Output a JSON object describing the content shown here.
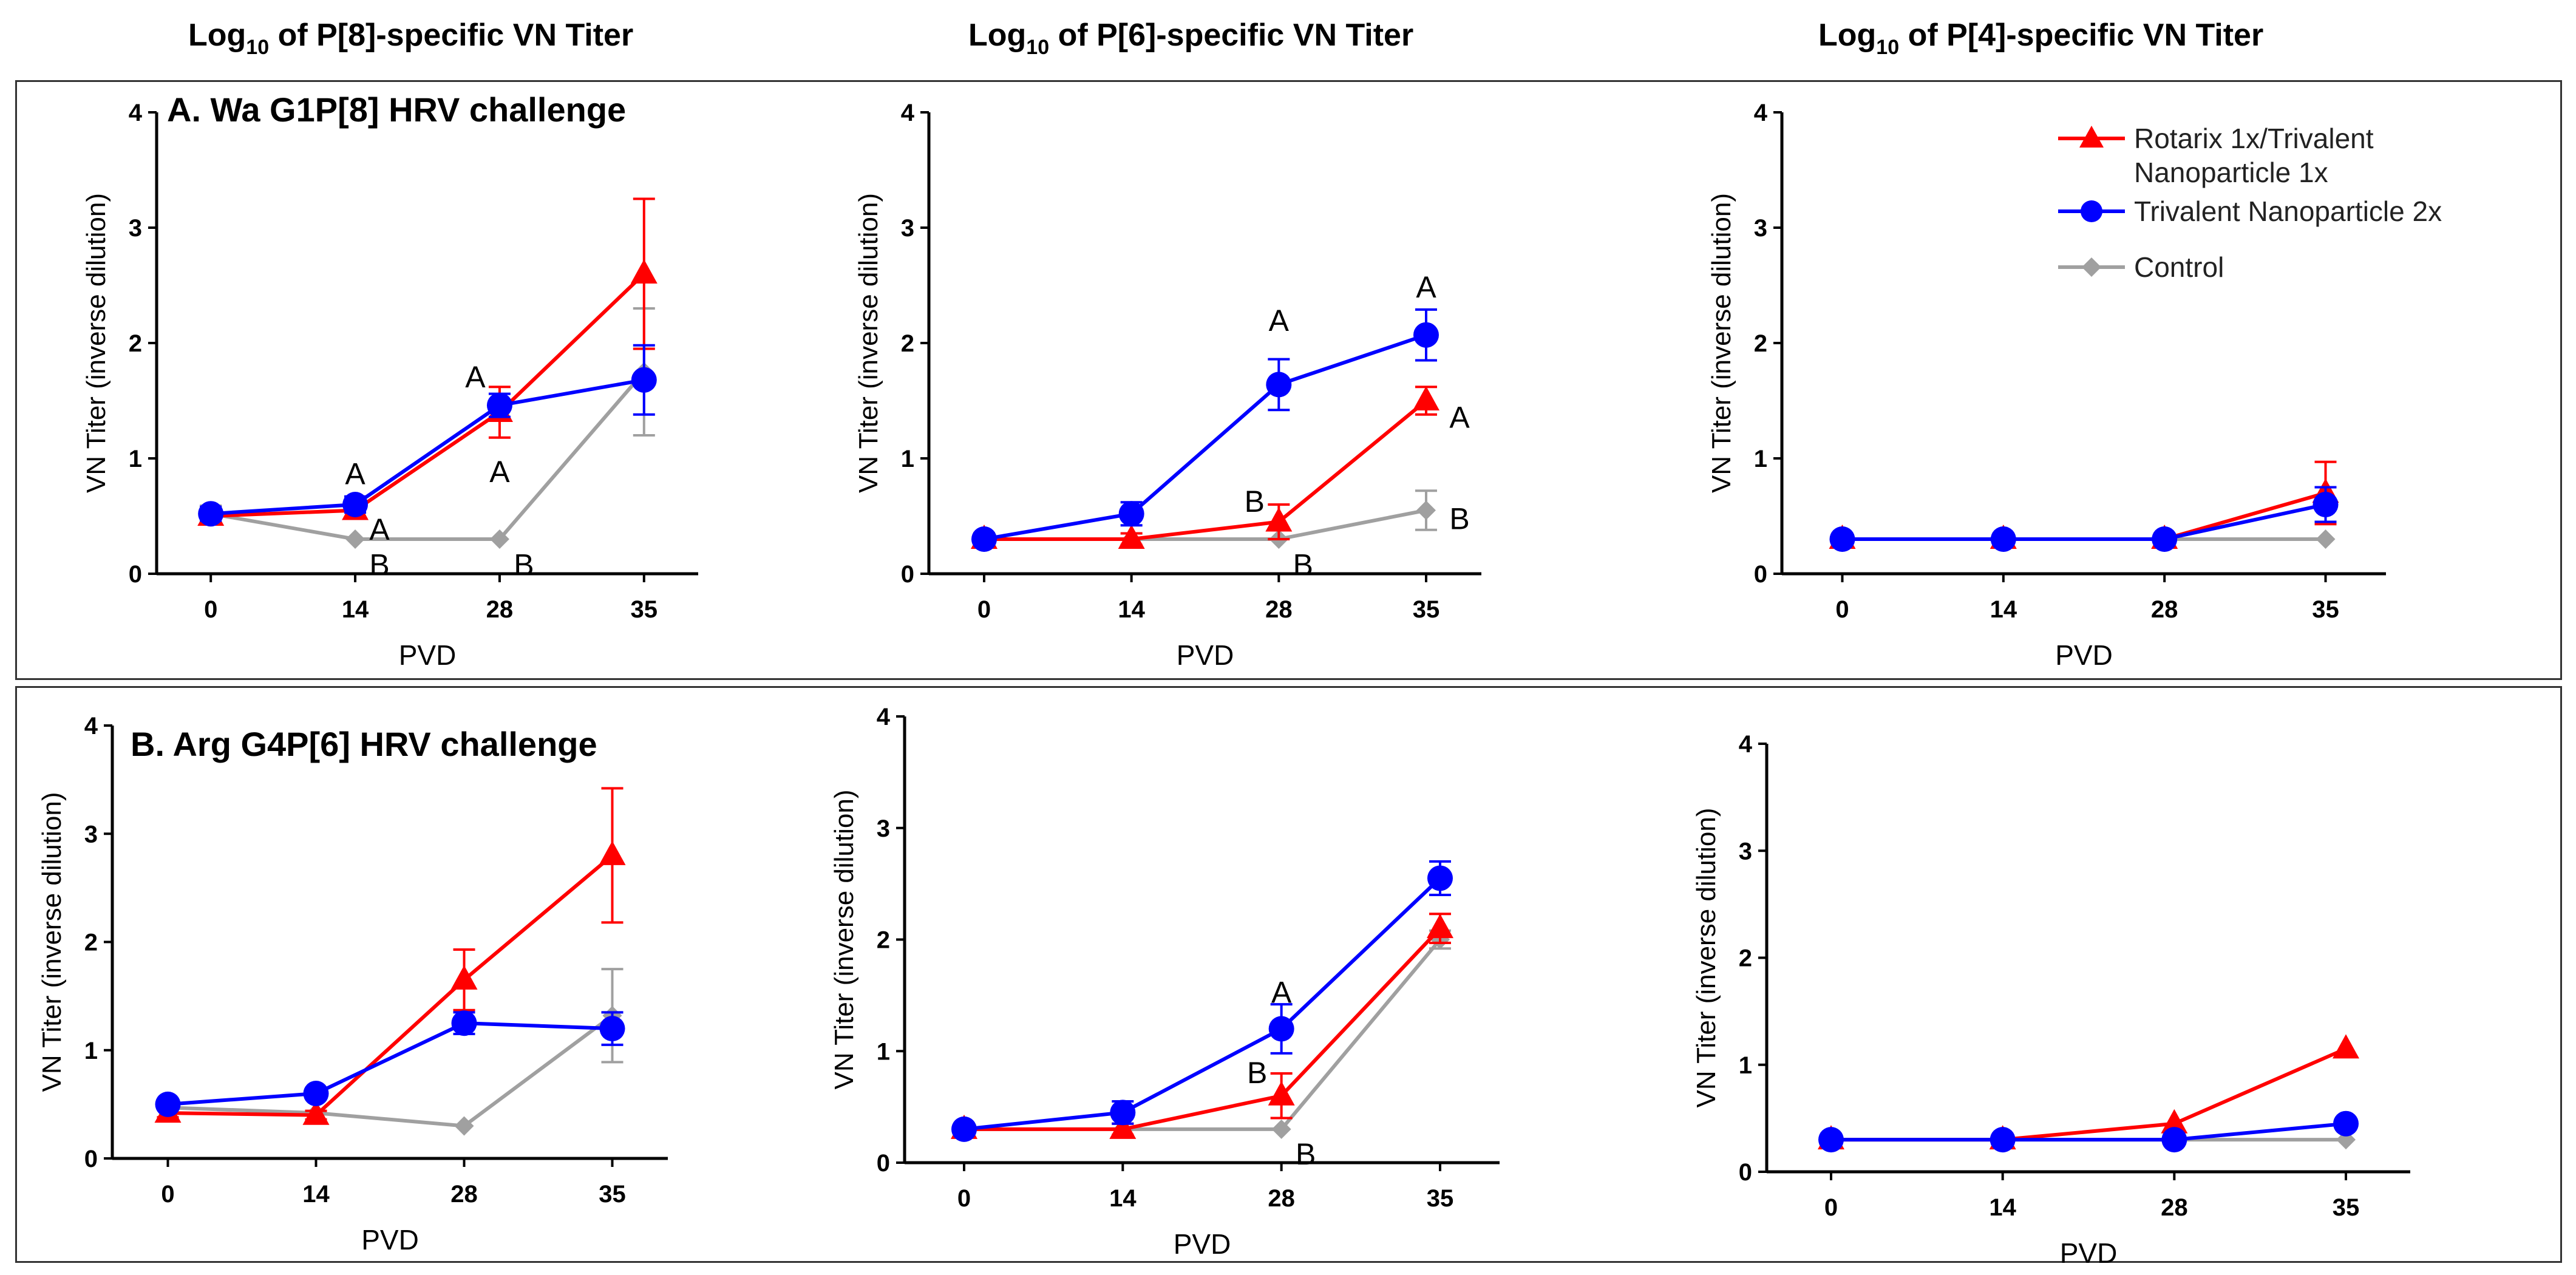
{
  "column_titles": [
    {
      "pre": "Log",
      "sub": "10",
      "post": " of P[8]-specific VN Titer"
    },
    {
      "pre": "Log",
      "sub": "10",
      "post": " of P[6]-specific VN Titer"
    },
    {
      "pre": "Log",
      "sub": "10",
      "post": " of P[4]-specific VN Titer"
    }
  ],
  "legend": [
    {
      "label": "Rotarix 1x/Trivalent Nanoparticle 1x",
      "line1": "Rotarix 1x/Trivalent",
      "line2": "Nanoparticle 1x",
      "color": "#ff0000",
      "marker": "triangle"
    },
    {
      "label": "Trivalent Nanoparticle 2x",
      "line1": "Trivalent Nanoparticle 2x",
      "line2": "",
      "color": "#0000ff",
      "marker": "circle"
    },
    {
      "label": "Control",
      "line1": "Control",
      "line2": "",
      "color": "#a0a0a0",
      "marker": "diamond"
    }
  ],
  "chart_data": [
    {
      "type": "line",
      "panel": "A1",
      "panel_label": "A. Wa G1P[8] HRV challenge",
      "xlabel": "PVD",
      "ylabel": "VN Titer (inverse dilution)",
      "categories": [
        "0",
        "14",
        "28",
        "35"
      ],
      "y_ticks": [
        "0",
        "1",
        "2",
        "3",
        "4"
      ],
      "ylim": [
        0,
        4
      ],
      "series": [
        {
          "name": "Rotarix 1x/Trivalent Nanoparticle 1x",
          "values": [
            0.5,
            0.55,
            1.4,
            2.6
          ],
          "errors": [
            0.07,
            0.07,
            0.22,
            0.65
          ]
        },
        {
          "name": "Trivalent Nanoparticle 2x",
          "values": [
            0.52,
            0.6,
            1.46,
            1.68
          ],
          "errors": [
            0.06,
            0.07,
            0.1,
            0.3
          ]
        },
        {
          "name": "Control",
          "values": [
            0.52,
            0.3,
            0.3,
            1.75
          ],
          "errors": [
            0.07,
            0,
            0,
            0.55
          ]
        }
      ],
      "annotations": [
        {
          "text": "A",
          "x": "14",
          "y": 0.86
        },
        {
          "text": "A",
          "x": "14",
          "y": 0.38
        },
        {
          "text": "B",
          "x": "14",
          "y": 0.07
        },
        {
          "text": "A",
          "x": "28",
          "y": 1.7
        },
        {
          "text": "A",
          "x": "28",
          "y": 0.88
        },
        {
          "text": "B",
          "x": "28",
          "y": 0.07
        }
      ]
    },
    {
      "type": "line",
      "panel": "A2",
      "panel_label": "",
      "xlabel": "PVD",
      "ylabel": "VN Titer (inverse dilution)",
      "categories": [
        "0",
        "14",
        "28",
        "35"
      ],
      "y_ticks": [
        "0",
        "1",
        "2",
        "3",
        "4"
      ],
      "ylim": [
        0,
        4
      ],
      "series": [
        {
          "name": "Rotarix 1x/Trivalent Nanoparticle 1x",
          "values": [
            0.3,
            0.3,
            0.45,
            1.5
          ],
          "errors": [
            0.05,
            0.05,
            0.15,
            0.12
          ]
        },
        {
          "name": "Trivalent Nanoparticle 2x",
          "values": [
            0.3,
            0.52,
            1.64,
            2.07
          ],
          "errors": [
            0.04,
            0.1,
            0.22,
            0.22
          ]
        },
        {
          "name": "Control",
          "values": [
            0.3,
            0.3,
            0.3,
            0.55
          ],
          "errors": [
            0,
            0,
            0,
            0.17
          ]
        }
      ],
      "annotations": [
        {
          "text": "A",
          "x": "28",
          "y": 2.19
        },
        {
          "text": "B",
          "x": "28",
          "y": 0.62
        },
        {
          "text": "B",
          "x": "28",
          "y": 0.07
        },
        {
          "text": "A",
          "x": "35",
          "y": 2.48
        },
        {
          "text": "A",
          "x": "35",
          "y": 1.35
        },
        {
          "text": "B",
          "x": "35",
          "y": 0.47
        }
      ]
    },
    {
      "type": "line",
      "panel": "A3",
      "panel_label": "",
      "xlabel": "PVD",
      "ylabel": "VN Titer (inverse dilution)",
      "categories": [
        "0",
        "14",
        "28",
        "35"
      ],
      "y_ticks": [
        "0",
        "1",
        "2",
        "3",
        "4"
      ],
      "ylim": [
        0,
        4
      ],
      "series": [
        {
          "name": "Rotarix 1x/Trivalent Nanoparticle 1x",
          "values": [
            0.3,
            0.3,
            0.3,
            0.7
          ],
          "errors": [
            0,
            0,
            0,
            0.27
          ]
        },
        {
          "name": "Trivalent Nanoparticle 2x",
          "values": [
            0.3,
            0.3,
            0.3,
            0.6
          ],
          "errors": [
            0,
            0,
            0,
            0.15
          ]
        },
        {
          "name": "Control",
          "values": [
            0.3,
            0.3,
            0.3,
            0.3
          ],
          "errors": [
            0,
            0,
            0,
            0
          ]
        }
      ],
      "annotations": []
    },
    {
      "type": "line",
      "panel": "B1",
      "panel_label": "B. Arg G4P[6] HRV challenge",
      "xlabel": "PVD",
      "ylabel": "VN Titer (inverse dilution)",
      "categories": [
        "0",
        "14",
        "28",
        "35"
      ],
      "y_ticks": [
        "0",
        "1",
        "2",
        "3",
        "4"
      ],
      "ylim": [
        0,
        4
      ],
      "series": [
        {
          "name": "Rotarix 1x/Trivalent Nanoparticle 1x",
          "values": [
            0.42,
            0.4,
            1.65,
            2.8
          ],
          "errors": [
            0.04,
            0.04,
            0.28,
            0.62
          ]
        },
        {
          "name": "Trivalent Nanoparticle 2x",
          "values": [
            0.5,
            0.6,
            1.25,
            1.2
          ],
          "errors": [
            0.04,
            0.05,
            0.1,
            0.15
          ]
        },
        {
          "name": "Control",
          "values": [
            0.47,
            0.42,
            0.3,
            1.32
          ],
          "errors": [
            0,
            0,
            0,
            0.43
          ]
        }
      ],
      "annotations": []
    },
    {
      "type": "line",
      "panel": "B2",
      "panel_label": "",
      "xlabel": "PVD",
      "ylabel": "VN Titer (inverse dilution)",
      "categories": [
        "0",
        "14",
        "28",
        "35"
      ],
      "y_ticks": [
        "0",
        "1",
        "2",
        "3",
        "4"
      ],
      "ylim": [
        0,
        4
      ],
      "series": [
        {
          "name": "Rotarix 1x/Trivalent Nanoparticle 1x",
          "values": [
            0.3,
            0.3,
            0.6,
            2.1
          ],
          "errors": [
            0.04,
            0.05,
            0.2,
            0.13
          ]
        },
        {
          "name": "Trivalent Nanoparticle 2x",
          "values": [
            0.3,
            0.45,
            1.2,
            2.55
          ],
          "errors": [
            0.04,
            0.1,
            0.22,
            0.15
          ]
        },
        {
          "name": "Control",
          "values": [
            0.3,
            0.3,
            0.3,
            2.0
          ],
          "errors": [
            0,
            0,
            0,
            0.08
          ]
        }
      ],
      "annotations": [
        {
          "text": "A",
          "x": "28",
          "y": 1.52
        },
        {
          "text": "B",
          "x": "28",
          "y": 0.8
        },
        {
          "text": "B",
          "x": "28",
          "y": 0.07
        }
      ]
    },
    {
      "type": "line",
      "panel": "B3",
      "panel_label": "",
      "xlabel": "PVD",
      "ylabel": "VN Titer (inverse dilution)",
      "categories": [
        "0",
        "14",
        "28",
        "35"
      ],
      "y_ticks": [
        "0",
        "1",
        "2",
        "3",
        "4"
      ],
      "ylim": [
        0,
        4
      ],
      "series": [
        {
          "name": "Rotarix 1x/Trivalent Nanoparticle 1x",
          "values": [
            0.3,
            0.3,
            0.45,
            1.15
          ],
          "errors": [
            0,
            0,
            0,
            0
          ]
        },
        {
          "name": "Trivalent Nanoparticle 2x",
          "values": [
            0.3,
            0.3,
            0.3,
            0.45
          ],
          "errors": [
            0,
            0,
            0,
            0
          ]
        },
        {
          "name": "Control",
          "values": [
            0.3,
            0.3,
            0.3,
            0.3
          ],
          "errors": [
            0,
            0,
            0,
            0
          ]
        }
      ],
      "annotations": []
    }
  ]
}
